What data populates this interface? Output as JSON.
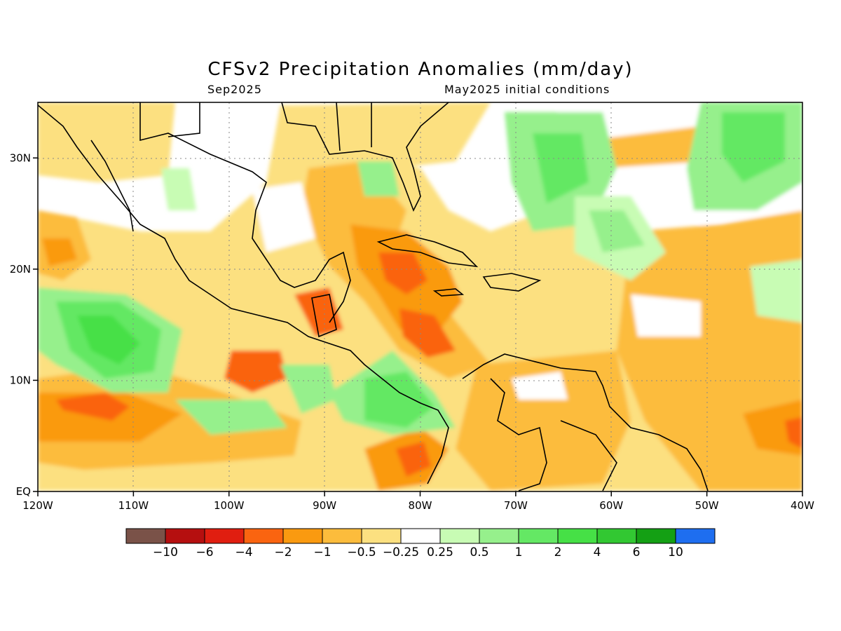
{
  "title": "CFSv2 Precipitation Anomalies (mm/day)",
  "subtitle_left": "Sep2025",
  "subtitle_right": "May2025 initial conditions",
  "axes": {
    "lon_labels": [
      "120W",
      "110W",
      "100W",
      "90W",
      "80W",
      "70W",
      "60W",
      "50W",
      "40W"
    ],
    "lat_labels": [
      "EQ",
      "10N",
      "20N",
      "30N"
    ],
    "lon_range": [
      -120,
      -40
    ],
    "lat_range": [
      0,
      35
    ],
    "grid": "dotted"
  },
  "colorbar": {
    "labels": [
      "-10",
      "-6",
      "-4",
      "-2",
      "-1",
      "-0.5",
      "-0.25",
      "0.25",
      "0.5",
      "1",
      "2",
      "4",
      "6",
      "10"
    ],
    "colors": [
      "#7a5248",
      "#b50f0f",
      "#e01e10",
      "#fa6410",
      "#fa9a10",
      "#fcbc3c",
      "#fce080",
      "#ffffff",
      "#c8fcb4",
      "#96f08c",
      "#64e864",
      "#46e046",
      "#32c832",
      "#14a014",
      "#1e6ef0"
    ]
  }
}
